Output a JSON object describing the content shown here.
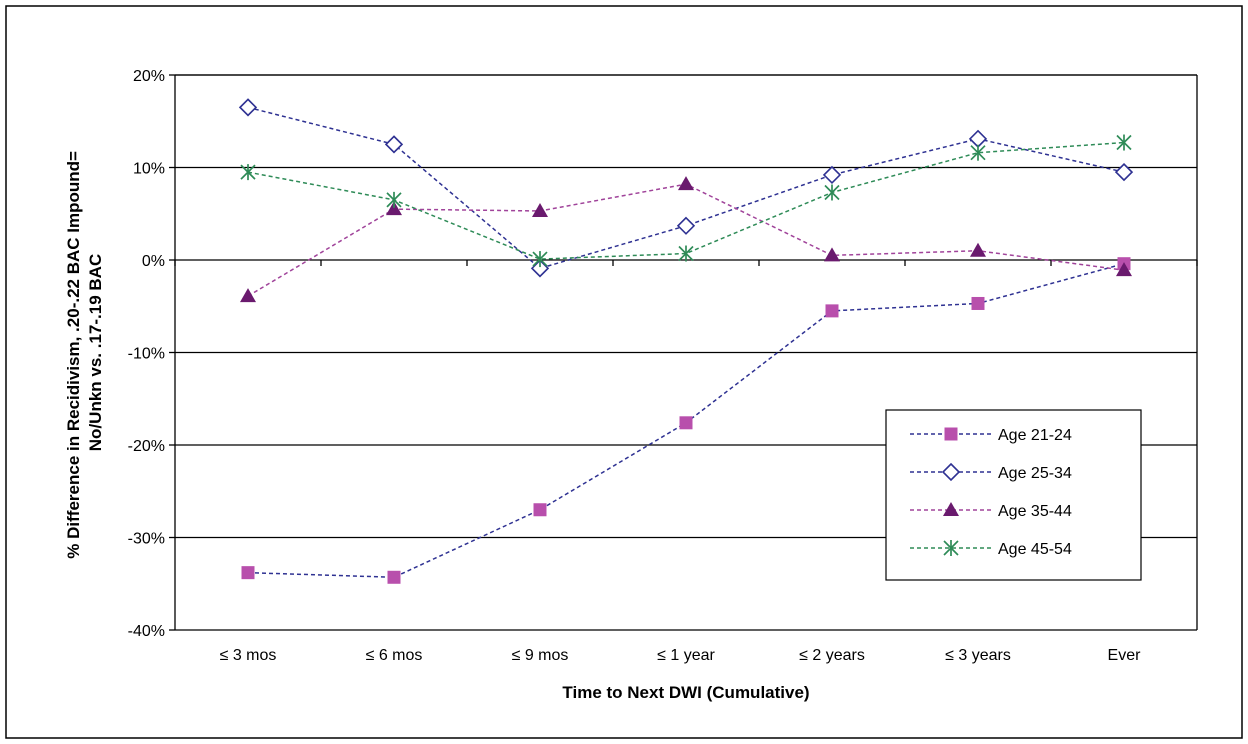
{
  "chart_data": {
    "type": "line",
    "title": "",
    "xlabel": "Time to Next  DWI (Cumulative)",
    "ylabel_lines": [
      "% Difference in Recidivism, .20-.22 BAC Impound=",
      "No/Unkn vs. .17-.19 BAC"
    ],
    "categories": [
      "≤ 3 mos",
      "≤ 6 mos",
      "≤ 9 mos",
      "≤ 1 year",
      "≤ 2 years",
      "≤ 3 years",
      "Ever"
    ],
    "ylim": [
      -40,
      20
    ],
    "yticks": [
      -40,
      -30,
      -20,
      -10,
      0,
      10,
      20
    ],
    "ytick_labels": [
      "-40%",
      "-30%",
      "-20%",
      "-10%",
      "0%",
      "10%",
      "20%"
    ],
    "grid": "horizontal",
    "legend_position": "right",
    "series": [
      {
        "name": "Age 21-24",
        "values": [
          -33.8,
          -34.3,
          -27.0,
          -17.6,
          -5.5,
          -4.7,
          -0.4
        ],
        "color": "#b84fac",
        "line_color": "#2e3192",
        "marker": "square-filled"
      },
      {
        "name": "Age 25-34",
        "values": [
          16.5,
          12.5,
          -0.9,
          3.7,
          9.2,
          13.1,
          9.5
        ],
        "color": "#2e3192",
        "line_color": "#2e3192",
        "marker": "diamond-open"
      },
      {
        "name": "Age 35-44",
        "values": [
          -3.9,
          5.5,
          5.3,
          8.2,
          0.5,
          1.0,
          -1.1
        ],
        "color": "#6a1a6e",
        "line_color": "#a0439a",
        "marker": "triangle-filled"
      },
      {
        "name": "Age 45-54",
        "values": [
          9.5,
          6.5,
          0.1,
          0.7,
          7.3,
          11.6,
          12.7
        ],
        "color": "#2e8b57",
        "line_color": "#2e8b57",
        "marker": "star"
      }
    ]
  }
}
